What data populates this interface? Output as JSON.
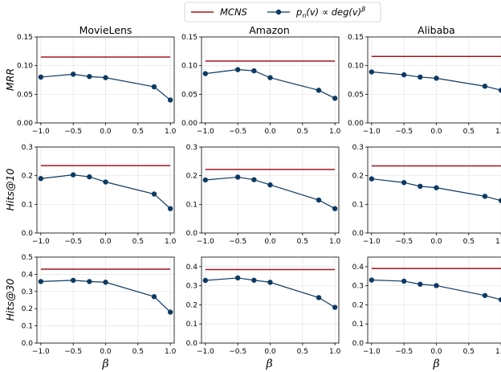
{
  "chart_data": {
    "type": "line",
    "columns": [
      "MovieLens",
      "Amazon",
      "Alibaba"
    ],
    "rows": [
      "MRR",
      "Hits@10",
      "Hits@30"
    ],
    "xlabel": "β",
    "x": [
      -1.0,
      -0.5,
      -0.25,
      0.0,
      0.75,
      1.0
    ],
    "xticks": [
      -1.0,
      -0.5,
      0.0,
      0.5,
      1.0
    ],
    "xtick_labels": [
      "−1.0",
      "−0.5",
      "0.0",
      "0.5",
      "1.0"
    ],
    "xlim": [
      -1.06,
      1.06
    ],
    "legend": {
      "placement": "top-center",
      "entries": [
        {
          "name": "MCNS",
          "color": "#a3171e",
          "marker": "none"
        },
        {
          "name": "p_n(v) ∝ deg(v)^β",
          "name_base": "p",
          "name_sub": "n",
          "name_mid": "(v) ∝ deg(v)",
          "name_sup": "β",
          "color": "#0d3a63",
          "marker": "circle"
        }
      ]
    },
    "grid": true,
    "panels": [
      {
        "row": "MRR",
        "col": "MovieLens",
        "ylim": [
          0,
          0.15
        ],
        "yticks": [
          0,
          0.05,
          0.1,
          0.15
        ],
        "ytick_labels": [
          "0.00",
          "0.05",
          "0.10",
          "0.15"
        ],
        "mcns": 0.115,
        "values": [
          0.08,
          0.085,
          0.081,
          0.079,
          0.063,
          0.04
        ]
      },
      {
        "row": "MRR",
        "col": "Amazon",
        "ylim": [
          0,
          0.15
        ],
        "yticks": [
          0,
          0.05,
          0.1,
          0.15
        ],
        "ytick_labels": [
          "0.00",
          "0.05",
          "0.10",
          "0.15"
        ],
        "mcns": 0.108,
        "values": [
          0.086,
          0.093,
          0.091,
          0.079,
          0.057,
          0.043
        ]
      },
      {
        "row": "MRR",
        "col": "Alibaba",
        "ylim": [
          0,
          0.15
        ],
        "yticks": [
          0,
          0.05,
          0.1,
          0.15
        ],
        "ytick_labels": [
          "0.00",
          "0.05",
          "0.10",
          "0.15"
        ],
        "mcns": 0.116,
        "values": [
          0.089,
          0.084,
          0.08,
          0.078,
          0.064,
          0.057
        ]
      },
      {
        "row": "Hits@10",
        "col": "MovieLens",
        "ylim": [
          0,
          0.3
        ],
        "yticks": [
          0,
          0.1,
          0.2,
          0.3
        ],
        "ytick_labels": [
          "0.0",
          "0.1",
          "0.2",
          "0.3"
        ],
        "mcns": 0.235,
        "values": [
          0.19,
          0.203,
          0.196,
          0.178,
          0.136,
          0.085
        ]
      },
      {
        "row": "Hits@10",
        "col": "Amazon",
        "ylim": [
          0,
          0.3
        ],
        "yticks": [
          0,
          0.1,
          0.2,
          0.3
        ],
        "ytick_labels": [
          "0.0",
          "0.1",
          "0.2",
          "0.3"
        ],
        "mcns": 0.222,
        "values": [
          0.185,
          0.195,
          0.186,
          0.168,
          0.115,
          0.085
        ]
      },
      {
        "row": "Hits@10",
        "col": "Alibaba",
        "ylim": [
          0,
          0.3
        ],
        "yticks": [
          0,
          0.1,
          0.2,
          0.3
        ],
        "ytick_labels": [
          "0.0",
          "0.1",
          "0.2",
          "0.3"
        ],
        "mcns": 0.234,
        "values": [
          0.189,
          0.176,
          0.163,
          0.158,
          0.128,
          0.113
        ]
      },
      {
        "row": "Hits@30",
        "col": "MovieLens",
        "ylim": [
          0,
          0.5
        ],
        "yticks": [
          0,
          0.1,
          0.2,
          0.3,
          0.4,
          0.5
        ],
        "ytick_labels": [
          "0.0",
          "0.1",
          "0.2",
          "0.3",
          "0.4",
          "0.5"
        ],
        "mcns": 0.43,
        "values": [
          0.358,
          0.365,
          0.358,
          0.354,
          0.27,
          0.18
        ]
      },
      {
        "row": "Hits@30",
        "col": "Amazon",
        "ylim": [
          0,
          0.45
        ],
        "yticks": [
          0,
          0.1,
          0.2,
          0.3,
          0.4
        ],
        "ytick_labels": [
          "0.0",
          "0.1",
          "0.2",
          "0.3",
          "0.4"
        ],
        "mcns": 0.385,
        "values": [
          0.328,
          0.341,
          0.329,
          0.318,
          0.238,
          0.187
        ]
      },
      {
        "row": "Hits@30",
        "col": "Alibaba",
        "ylim": [
          0,
          0.45
        ],
        "yticks": [
          0,
          0.1,
          0.2,
          0.3,
          0.4
        ],
        "ytick_labels": [
          "0.0",
          "0.1",
          "0.2",
          "0.3",
          "0.4"
        ],
        "mcns": 0.39,
        "values": [
          0.33,
          0.324,
          0.308,
          0.301,
          0.249,
          0.227
        ]
      }
    ]
  }
}
